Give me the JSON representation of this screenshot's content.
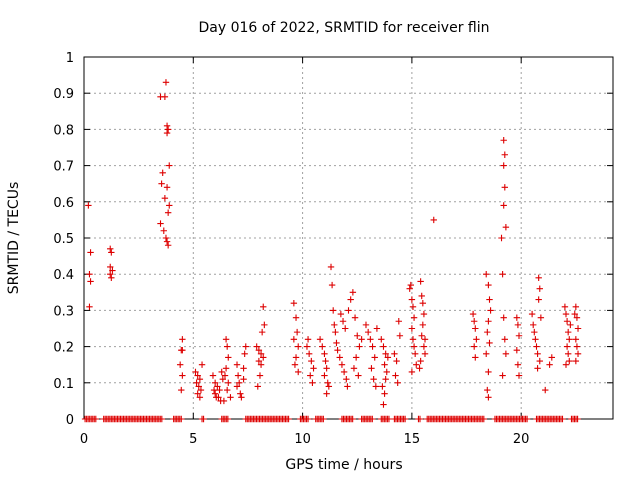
{
  "chart_data": {
    "type": "scatter",
    "title": "Day 016 of 2022, SRMTID for receiver flin",
    "xlabel": "GPS time / hours",
    "ylabel": "SRMTID / TECUs",
    "xlim": [
      0,
      24.2
    ],
    "ylim": [
      0,
      1
    ],
    "xticks": [
      0,
      5,
      10,
      15,
      20
    ],
    "xtick_labels": [
      "0",
      "5",
      "10",
      "15",
      "20"
    ],
    "yticks": [
      0,
      0.1,
      0.2,
      0.3,
      0.4,
      0.5,
      0.6,
      0.7,
      0.8,
      0.9,
      1
    ],
    "ytick_labels": [
      "0",
      "0.1",
      "0.2",
      "0.3",
      "0.4",
      "0.5",
      "0.6",
      "0.7",
      "0.8",
      "0.9",
      "1"
    ],
    "grid": true,
    "marker": "plus",
    "color": "#dd0000",
    "series": [
      {
        "name": "SRMTID",
        "points": [
          [
            0.2,
            0.59
          ],
          [
            0.3,
            0.46
          ],
          [
            0.25,
            0.4
          ],
          [
            0.3,
            0.38
          ],
          [
            0.25,
            0.31
          ],
          [
            1.2,
            0.47
          ],
          [
            1.25,
            0.46
          ],
          [
            1.2,
            0.42
          ],
          [
            1.3,
            0.41
          ],
          [
            1.2,
            0.4
          ],
          [
            1.25,
            0.39
          ],
          [
            3.5,
            0.89
          ],
          [
            3.7,
            0.89
          ],
          [
            3.75,
            0.93
          ],
          [
            3.8,
            0.81
          ],
          [
            3.85,
            0.8
          ],
          [
            3.8,
            0.79
          ],
          [
            3.9,
            0.7
          ],
          [
            3.6,
            0.68
          ],
          [
            3.55,
            0.65
          ],
          [
            3.8,
            0.64
          ],
          [
            3.9,
            0.59
          ],
          [
            3.85,
            0.57
          ],
          [
            3.7,
            0.61
          ],
          [
            3.5,
            0.54
          ],
          [
            3.65,
            0.52
          ],
          [
            3.75,
            0.5
          ],
          [
            3.8,
            0.49
          ],
          [
            3.85,
            0.48
          ],
          [
            4.5,
            0.22
          ],
          [
            4.45,
            0.19
          ],
          [
            4.5,
            0.19
          ],
          [
            4.4,
            0.15
          ],
          [
            4.5,
            0.12
          ],
          [
            4.45,
            0.08
          ],
          [
            5.1,
            0.13
          ],
          [
            5.2,
            0.12
          ],
          [
            5.3,
            0.11
          ],
          [
            5.15,
            0.1
          ],
          [
            5.25,
            0.09
          ],
          [
            5.35,
            0.08
          ],
          [
            5.2,
            0.07
          ],
          [
            5.4,
            0.15
          ],
          [
            5.3,
            0.06
          ],
          [
            5.9,
            0.12
          ],
          [
            6.0,
            0.1
          ],
          [
            6.1,
            0.09
          ],
          [
            6.2,
            0.08
          ],
          [
            6.0,
            0.07
          ],
          [
            6.15,
            0.06
          ],
          [
            6.3,
            0.13
          ],
          [
            6.25,
            0.05
          ],
          [
            6.35,
            0.11
          ],
          [
            5.95,
            0.08
          ],
          [
            6.05,
            0.06
          ],
          [
            6.5,
            0.22
          ],
          [
            6.55,
            0.2
          ],
          [
            6.6,
            0.17
          ],
          [
            6.5,
            0.14
          ],
          [
            6.45,
            0.12
          ],
          [
            6.6,
            0.1
          ],
          [
            6.55,
            0.08
          ],
          [
            6.7,
            0.06
          ],
          [
            6.4,
            0.05
          ],
          [
            7.0,
            0.15
          ],
          [
            7.05,
            0.12
          ],
          [
            7.1,
            0.1
          ],
          [
            7.0,
            0.09
          ],
          [
            7.15,
            0.07
          ],
          [
            7.2,
            0.06
          ],
          [
            7.3,
            0.14
          ],
          [
            7.35,
            0.18
          ],
          [
            7.4,
            0.2
          ],
          [
            7.3,
            0.11
          ],
          [
            7.9,
            0.2
          ],
          [
            8.0,
            0.19
          ],
          [
            8.1,
            0.18
          ],
          [
            8.2,
            0.17
          ],
          [
            8.0,
            0.16
          ],
          [
            8.1,
            0.15
          ],
          [
            8.2,
            0.31
          ],
          [
            8.25,
            0.26
          ],
          [
            8.15,
            0.24
          ],
          [
            8.05,
            0.12
          ],
          [
            7.95,
            0.09
          ],
          [
            9.6,
            0.32
          ],
          [
            9.7,
            0.28
          ],
          [
            9.75,
            0.24
          ],
          [
            9.8,
            0.2
          ],
          [
            9.7,
            0.17
          ],
          [
            9.65,
            0.15
          ],
          [
            9.8,
            0.13
          ],
          [
            9.6,
            0.22
          ],
          [
            10.2,
            0.2
          ],
          [
            10.3,
            0.18
          ],
          [
            10.4,
            0.16
          ],
          [
            10.5,
            0.14
          ],
          [
            10.35,
            0.12
          ],
          [
            10.45,
            0.1
          ],
          [
            10.25,
            0.22
          ],
          [
            10.8,
            0.22
          ],
          [
            10.9,
            0.2
          ],
          [
            11.0,
            0.18
          ],
          [
            11.05,
            0.16
          ],
          [
            11.1,
            0.14
          ],
          [
            11.0,
            0.12
          ],
          [
            11.15,
            0.1
          ],
          [
            11.2,
            0.09
          ],
          [
            11.1,
            0.07
          ],
          [
            11.3,
            0.42
          ],
          [
            11.35,
            0.37
          ],
          [
            11.4,
            0.3
          ],
          [
            11.45,
            0.26
          ],
          [
            11.5,
            0.24
          ],
          [
            11.55,
            0.21
          ],
          [
            11.6,
            0.19
          ],
          [
            11.7,
            0.17
          ],
          [
            11.8,
            0.15
          ],
          [
            11.9,
            0.13
          ],
          [
            12.0,
            0.11
          ],
          [
            12.05,
            0.09
          ],
          [
            11.75,
            0.29
          ],
          [
            11.85,
            0.27
          ],
          [
            11.95,
            0.25
          ],
          [
            12.1,
            0.3
          ],
          [
            12.2,
            0.33
          ],
          [
            12.3,
            0.35
          ],
          [
            12.4,
            0.28
          ],
          [
            12.5,
            0.23
          ],
          [
            12.6,
            0.2
          ],
          [
            12.45,
            0.17
          ],
          [
            12.35,
            0.14
          ],
          [
            12.55,
            0.12
          ],
          [
            12.7,
            0.22
          ],
          [
            12.9,
            0.26
          ],
          [
            13.0,
            0.24
          ],
          [
            13.1,
            0.22
          ],
          [
            13.2,
            0.2
          ],
          [
            13.3,
            0.17
          ],
          [
            13.15,
            0.14
          ],
          [
            13.25,
            0.11
          ],
          [
            13.4,
            0.25
          ],
          [
            13.35,
            0.09
          ],
          [
            13.6,
            0.22
          ],
          [
            13.7,
            0.2
          ],
          [
            13.8,
            0.18
          ],
          [
            13.75,
            0.15
          ],
          [
            13.85,
            0.13
          ],
          [
            13.8,
            0.11
          ],
          [
            13.75,
            0.07
          ],
          [
            13.7,
            0.04
          ],
          [
            13.9,
            0.17
          ],
          [
            13.65,
            0.09
          ],
          [
            14.2,
            0.18
          ],
          [
            14.3,
            0.16
          ],
          [
            14.25,
            0.12
          ],
          [
            14.35,
            0.1
          ],
          [
            14.4,
            0.27
          ],
          [
            14.45,
            0.23
          ],
          [
            14.9,
            0.36
          ],
          [
            15.0,
            0.33
          ],
          [
            15.05,
            0.31
          ],
          [
            15.1,
            0.28
          ],
          [
            15.0,
            0.25
          ],
          [
            15.05,
            0.22
          ],
          [
            15.1,
            0.2
          ],
          [
            15.15,
            0.18
          ],
          [
            15.2,
            0.15
          ],
          [
            15.0,
            0.13
          ],
          [
            14.95,
            0.37
          ],
          [
            15.4,
            0.38
          ],
          [
            15.45,
            0.34
          ],
          [
            15.5,
            0.32
          ],
          [
            15.55,
            0.29
          ],
          [
            15.5,
            0.26
          ],
          [
            15.45,
            0.23
          ],
          [
            15.55,
            0.2
          ],
          [
            15.6,
            0.18
          ],
          [
            15.4,
            0.16
          ],
          [
            15.35,
            0.14
          ],
          [
            15.6,
            0.22
          ],
          [
            16.0,
            0.55
          ],
          [
            17.8,
            0.29
          ],
          [
            17.85,
            0.27
          ],
          [
            17.9,
            0.25
          ],
          [
            17.95,
            0.22
          ],
          [
            17.85,
            0.2
          ],
          [
            17.9,
            0.17
          ],
          [
            18.4,
            0.4
          ],
          [
            18.5,
            0.37
          ],
          [
            18.55,
            0.33
          ],
          [
            18.6,
            0.3
          ],
          [
            18.5,
            0.27
          ],
          [
            18.45,
            0.24
          ],
          [
            18.55,
            0.21
          ],
          [
            18.4,
            0.18
          ],
          [
            18.5,
            0.13
          ],
          [
            18.45,
            0.08
          ],
          [
            18.5,
            0.06
          ],
          [
            19.1,
            0.5
          ],
          [
            19.15,
            0.4
          ],
          [
            19.2,
            0.77
          ],
          [
            19.25,
            0.73
          ],
          [
            19.2,
            0.7
          ],
          [
            19.25,
            0.64
          ],
          [
            19.2,
            0.59
          ],
          [
            19.3,
            0.53
          ],
          [
            19.2,
            0.28
          ],
          [
            19.25,
            0.22
          ],
          [
            19.3,
            0.18
          ],
          [
            19.15,
            0.12
          ],
          [
            19.8,
            0.28
          ],
          [
            19.85,
            0.26
          ],
          [
            19.9,
            0.23
          ],
          [
            19.8,
            0.19
          ],
          [
            19.85,
            0.15
          ],
          [
            19.9,
            0.12
          ],
          [
            20.5,
            0.29
          ],
          [
            20.55,
            0.26
          ],
          [
            20.6,
            0.24
          ],
          [
            20.65,
            0.22
          ],
          [
            20.7,
            0.2
          ],
          [
            20.75,
            0.18
          ],
          [
            20.8,
            0.39
          ],
          [
            20.85,
            0.36
          ],
          [
            20.8,
            0.33
          ],
          [
            20.9,
            0.28
          ],
          [
            20.85,
            0.16
          ],
          [
            20.75,
            0.14
          ],
          [
            21.1,
            0.08
          ],
          [
            21.3,
            0.15
          ],
          [
            21.4,
            0.17
          ],
          [
            22.0,
            0.31
          ],
          [
            22.05,
            0.29
          ],
          [
            22.1,
            0.27
          ],
          [
            22.15,
            0.24
          ],
          [
            22.2,
            0.22
          ],
          [
            22.1,
            0.2
          ],
          [
            22.15,
            0.18
          ],
          [
            22.2,
            0.16
          ],
          [
            22.05,
            0.15
          ],
          [
            22.25,
            0.26
          ],
          [
            22.5,
            0.31
          ],
          [
            22.55,
            0.28
          ],
          [
            22.6,
            0.25
          ],
          [
            22.5,
            0.22
          ],
          [
            22.55,
            0.2
          ],
          [
            22.6,
            0.18
          ],
          [
            22.5,
            0.16
          ],
          [
            22.45,
            0.29
          ]
        ],
        "zero_runs": [
          [
            0.05,
            0.6
          ],
          [
            0.9,
            3.6
          ],
          [
            4.1,
            4.5
          ],
          [
            5.4,
            5.5
          ],
          [
            6.3,
            6.6
          ],
          [
            7.4,
            9.4
          ],
          [
            9.9,
            10.3
          ],
          [
            10.6,
            11.0
          ],
          [
            11.8,
            12.3
          ],
          [
            12.7,
            13.2
          ],
          [
            13.6,
            14.0
          ],
          [
            14.2,
            14.7
          ],
          [
            15.3,
            15.4
          ],
          [
            15.7,
            18.3
          ],
          [
            18.8,
            20.3
          ],
          [
            20.7,
            21.9
          ],
          [
            22.3,
            22.6
          ]
        ]
      }
    ]
  }
}
